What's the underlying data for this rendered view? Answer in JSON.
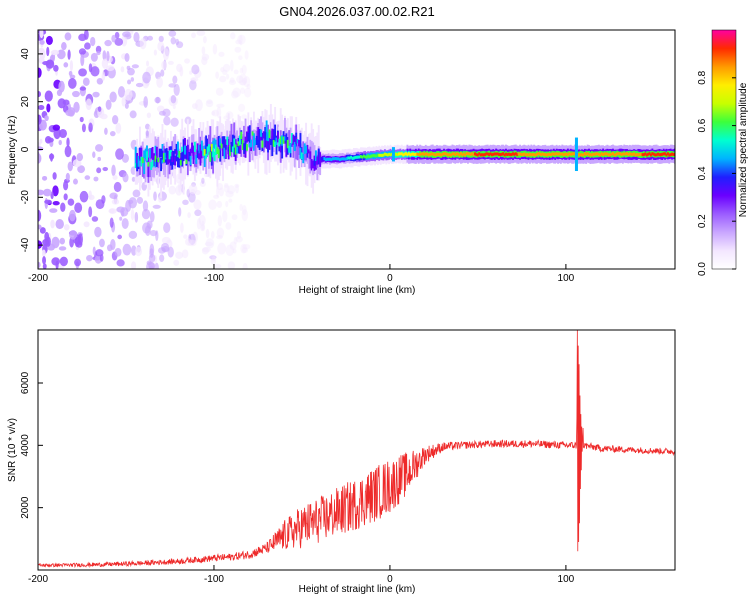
{
  "title": "GN04.2026.037.00.02.R21",
  "colors": {
    "line": "#ee2a2a",
    "colormap": [
      "#ffffff",
      "#f3e6ff",
      "#c9a6ff",
      "#9b5cff",
      "#6a00ff",
      "#1f1fff",
      "#00b4ff",
      "#00ffd0",
      "#3cff3c",
      "#c8ff00",
      "#ffee00",
      "#ff9a00",
      "#ff2a00",
      "#ff00a0"
    ]
  },
  "chart_data": [
    {
      "type": "heatmap",
      "title": "",
      "xlabel": "Height of straight line (km)",
      "ylabel": "Frequency (Hz)",
      "xlim": [
        -200,
        162
      ],
      "ylim": [
        -50,
        50
      ],
      "x_ticks": [
        -200,
        -100,
        0,
        100
      ],
      "x_tick_labels": [
        "-200",
        "-100",
        "0",
        "100"
      ],
      "y_ticks": [
        40,
        20,
        0,
        -20,
        -40
      ],
      "y_tick_labels": [
        "40",
        "20",
        "0",
        "-20",
        "-40"
      ],
      "colorbar": {
        "label": "Normalized spectral amplitude",
        "range": [
          0,
          1
        ],
        "ticks": [
          0.0,
          0.2,
          0.4,
          0.6,
          0.8
        ],
        "tick_labels": [
          "0.0",
          "0.2",
          "0.4",
          "0.6",
          "0.8"
        ]
      },
      "features": {
        "noise_region_km": [
          -200,
          -80
        ],
        "carrier_track": [
          {
            "x": -145,
            "f": -5,
            "amp": 0.55
          },
          {
            "x": -130,
            "f": -4,
            "amp": 0.5
          },
          {
            "x": -115,
            "f": -2,
            "amp": 0.5
          },
          {
            "x": -100,
            "f": 0,
            "amp": 0.55
          },
          {
            "x": -85,
            "f": 3,
            "amp": 0.5
          },
          {
            "x": -70,
            "f": 5,
            "amp": 0.5
          },
          {
            "x": -55,
            "f": 2,
            "amp": 0.45
          },
          {
            "x": -45,
            "f": -4,
            "amp": 0.4
          },
          {
            "x": -30,
            "f": -4,
            "amp": 0.45
          },
          {
            "x": -15,
            "f": -3,
            "amp": 0.6
          },
          {
            "x": 0,
            "f": -2,
            "amp": 0.7
          },
          {
            "x": 20,
            "f": -2,
            "amp": 0.85
          },
          {
            "x": 60,
            "f": -2,
            "amp": 0.9
          },
          {
            "x": 100,
            "f": -2,
            "amp": 0.85
          },
          {
            "x": 162,
            "f": -2,
            "amp": 0.9
          }
        ]
      }
    },
    {
      "type": "line",
      "title": "",
      "xlabel": "Height of straight line (km)",
      "ylabel": "SNR (10 * v/v)",
      "xlim": [
        -200,
        162
      ],
      "ylim": [
        0,
        7700
      ],
      "x_ticks": [
        -200,
        -100,
        0,
        100
      ],
      "x_tick_labels": [
        "-200",
        "-100",
        "0",
        "100"
      ],
      "y_ticks": [
        2000,
        4000,
        6000
      ],
      "y_tick_labels": [
        "2000",
        "4000",
        "6000"
      ],
      "series": [
        {
          "name": "SNR",
          "x": [
            -200,
            -180,
            -160,
            -140,
            -120,
            -100,
            -90,
            -80,
            -70,
            -60,
            -50,
            -40,
            -30,
            -20,
            -10,
            0,
            10,
            20,
            30,
            40,
            60,
            80,
            100,
            106,
            107,
            108,
            109,
            110,
            115,
            120,
            140,
            162
          ],
          "mean": [
            150,
            160,
            180,
            220,
            280,
            380,
            420,
            500,
            700,
            1100,
            1400,
            1600,
            1850,
            2100,
            2400,
            2700,
            3100,
            3700,
            3950,
            4000,
            4050,
            4050,
            4000,
            4000,
            7200,
            600,
            6500,
            4000,
            3950,
            3900,
            3850,
            3800
          ],
          "noise": [
            50,
            60,
            70,
            80,
            90,
            110,
            120,
            140,
            180,
            500,
            700,
            750,
            800,
            850,
            900,
            900,
            700,
            300,
            150,
            120,
            120,
            120,
            120,
            120,
            0,
            0,
            0,
            120,
            110,
            110,
            100,
            100
          ]
        }
      ]
    }
  ]
}
